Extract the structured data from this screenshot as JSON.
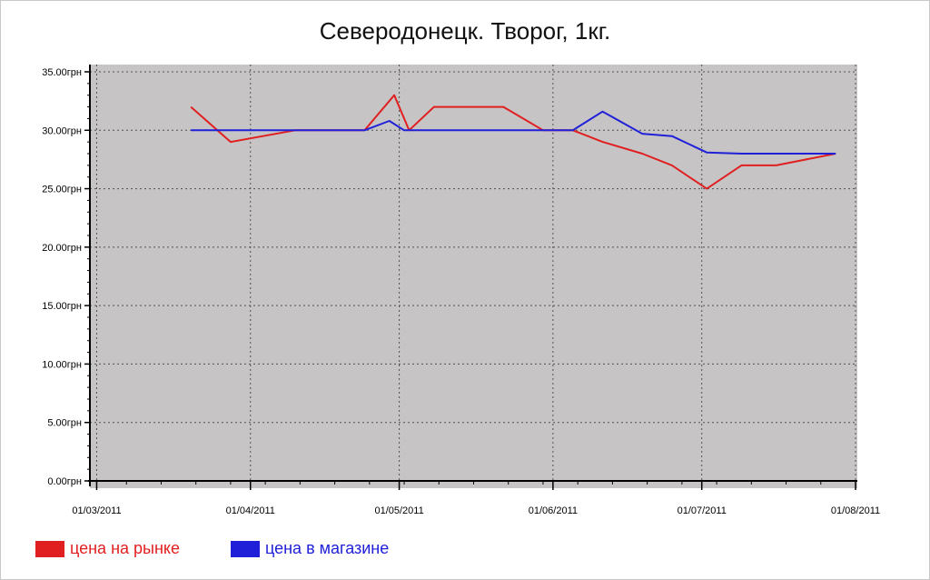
{
  "title": "Северодонецк. Творог, 1кг.",
  "colors": {
    "plot_bg": "#c7c4c6",
    "market": "#e02020",
    "store": "#2020d8"
  },
  "chart_data": {
    "type": "line",
    "title": "Северодонецк. Творог, 1кг.",
    "xlabel": "",
    "ylabel": "",
    "xlim": [
      "2011-02-28",
      "2011-08-01"
    ],
    "ylim": [
      0,
      35
    ],
    "grid": true,
    "legend_position": "bottom-left",
    "x_tick_labels": [
      "01/03/2011",
      "01/04/2011",
      "01/05/2011",
      "01/06/2011",
      "01/07/2011",
      "01/08/2011"
    ],
    "x_tick_dates": [
      "2011-03-01",
      "2011-04-01",
      "2011-05-01",
      "2011-06-01",
      "2011-07-01",
      "2011-08-01"
    ],
    "y_ticks": [
      0,
      5,
      10,
      15,
      20,
      25,
      30,
      35
    ],
    "y_tick_labels": [
      "0.00грн",
      "5.00грн",
      "10.00грн",
      "15.00грн",
      "20.00грн",
      "25.00грн",
      "30.00грн",
      "35.00грн"
    ],
    "series": [
      {
        "name": "цена на рынке",
        "color": "#e02020",
        "points": [
          [
            "2011-03-20",
            32
          ],
          [
            "2011-03-28",
            29
          ],
          [
            "2011-04-10",
            30
          ],
          [
            "2011-04-24",
            30
          ],
          [
            "2011-04-30",
            33
          ],
          [
            "2011-05-03",
            30
          ],
          [
            "2011-05-08",
            32
          ],
          [
            "2011-05-22",
            32
          ],
          [
            "2011-05-30",
            30
          ],
          [
            "2011-06-05",
            30
          ],
          [
            "2011-06-11",
            29
          ],
          [
            "2011-06-19",
            28
          ],
          [
            "2011-06-25",
            27
          ],
          [
            "2011-07-02",
            25
          ],
          [
            "2011-07-09",
            27
          ],
          [
            "2011-07-16",
            27
          ],
          [
            "2011-07-28",
            28
          ]
        ]
      },
      {
        "name": "цена в магазине",
        "color": "#2020d8",
        "points": [
          [
            "2011-03-20",
            30
          ],
          [
            "2011-04-10",
            30
          ],
          [
            "2011-04-24",
            30
          ],
          [
            "2011-04-29",
            30.8
          ],
          [
            "2011-05-02",
            30
          ],
          [
            "2011-05-22",
            30
          ],
          [
            "2011-06-05",
            30
          ],
          [
            "2011-06-11",
            31.6
          ],
          [
            "2011-06-19",
            29.7
          ],
          [
            "2011-06-25",
            29.5
          ],
          [
            "2011-07-02",
            28.1
          ],
          [
            "2011-07-09",
            28
          ],
          [
            "2011-07-16",
            28
          ],
          [
            "2011-07-28",
            28
          ]
        ]
      }
    ]
  },
  "legend": [
    {
      "label": "цена на рынке",
      "color": "#e02020"
    },
    {
      "label": "цена в магазине",
      "color": "#2020d8"
    }
  ]
}
